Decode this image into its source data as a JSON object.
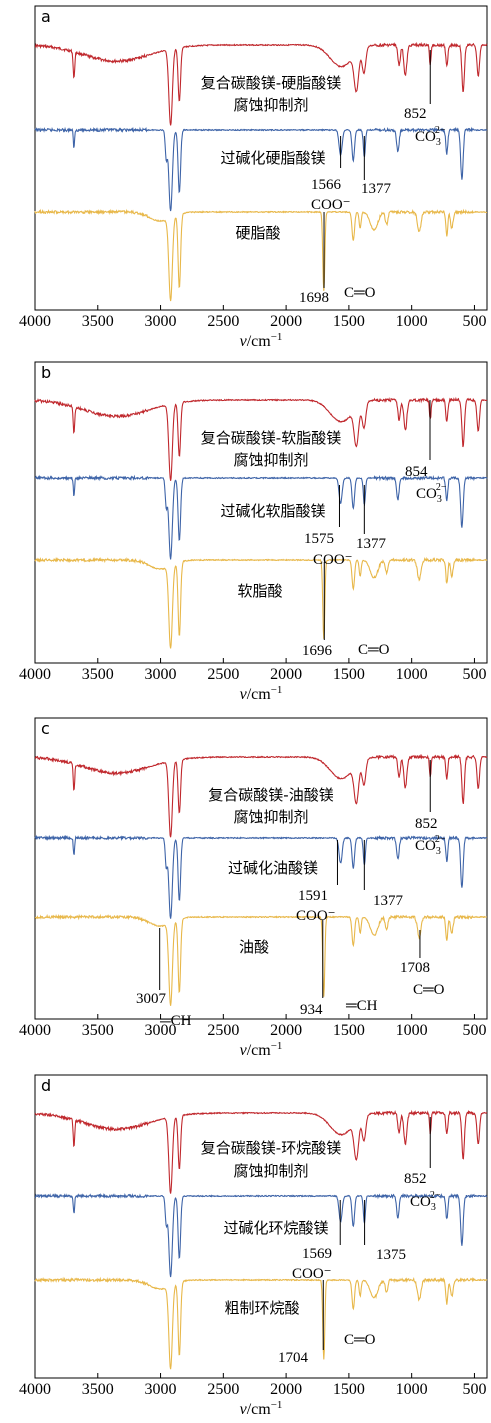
{
  "chart_data": [
    {
      "type": "line",
      "panel": "a",
      "xlabel": "v/cm",
      "xlabel_sup": "−1",
      "xlim": [
        4000,
        400
      ],
      "x_reversed": true,
      "ticks": [
        "4000",
        "3500",
        "3000",
        "2500",
        "2000",
        "1500",
        "1000",
        "500"
      ],
      "series": [
        {
          "name": "复合碳酸镁-硬脂酸镁腐蚀抑制剂",
          "color": "#c0282d"
        },
        {
          "name": "过碱化硬脂酸镁",
          "color": "#3e64a8"
        },
        {
          "name": "硬脂酸",
          "color": "#e8b84a"
        }
      ],
      "annotations": [
        {
          "text": "852",
          "x": 852
        },
        {
          "text": "CO",
          "sup": "2−",
          "sub": "3"
        },
        {
          "text": "1566",
          "x": 1566
        },
        {
          "text": "COO⁻"
        },
        {
          "text": "1377",
          "x": 1377
        },
        {
          "text": "1698",
          "x": 1698
        },
        {
          "text": "C═O"
        }
      ]
    },
    {
      "type": "line",
      "panel": "b",
      "xlabel": "v/cm",
      "xlabel_sup": "−1",
      "xlim": [
        4000,
        400
      ],
      "x_reversed": true,
      "ticks": [
        "4000",
        "3500",
        "3000",
        "2500",
        "2000",
        "1500",
        "1000",
        "500"
      ],
      "series": [
        {
          "name": "复合碳酸镁-软脂酸镁腐蚀抑制剂",
          "color": "#c0282d"
        },
        {
          "name": "过碱化软脂酸镁",
          "color": "#3e64a8"
        },
        {
          "name": "软脂酸",
          "color": "#e8b84a"
        }
      ],
      "annotations": [
        {
          "text": "854",
          "x": 854
        },
        {
          "text": "CO",
          "sup": "2−",
          "sub": "3"
        },
        {
          "text": "1575",
          "x": 1575
        },
        {
          "text": "COO⁻"
        },
        {
          "text": "1377",
          "x": 1377
        },
        {
          "text": "1696",
          "x": 1696
        },
        {
          "text": "C═O"
        }
      ]
    },
    {
      "type": "line",
      "panel": "c",
      "xlabel": "v/cm",
      "xlabel_sup": "−1",
      "xlim": [
        4000,
        400
      ],
      "x_reversed": true,
      "ticks": [
        "4000",
        "3500",
        "3000",
        "2500",
        "2000",
        "1500",
        "1000",
        "500"
      ],
      "series": [
        {
          "name": "复合碳酸镁-油酸镁腐蚀抑制剂",
          "color": "#c0282d"
        },
        {
          "name": "过碱化油酸镁",
          "color": "#3e64a8"
        },
        {
          "name": "油酸",
          "color": "#e8b84a"
        }
      ],
      "annotations": [
        {
          "text": "852",
          "x": 852
        },
        {
          "text": "CO",
          "sup": "2−",
          "sub": "3"
        },
        {
          "text": "1591",
          "x": 1591
        },
        {
          "text": "COO⁻"
        },
        {
          "text": "1377",
          "x": 1377
        },
        {
          "text": "3007",
          "x": 3007
        },
        {
          "text": "═CH"
        },
        {
          "text": "1708",
          "x": 1708
        },
        {
          "text": "C═O"
        },
        {
          "text": "934",
          "x": 934
        },
        {
          "text": "═CH"
        }
      ]
    },
    {
      "type": "line",
      "panel": "d",
      "xlabel": "v/cm",
      "xlabel_sup": "−1",
      "xlim": [
        4000,
        400
      ],
      "x_reversed": true,
      "ticks": [
        "4000",
        "3500",
        "3000",
        "2500",
        "2000",
        "1500",
        "1000",
        "500"
      ],
      "series": [
        {
          "name": "复合碳酸镁-环烷酸镁腐蚀抑制剂",
          "color": "#c0282d"
        },
        {
          "name": "过碱化环烷酸镁",
          "color": "#3e64a8"
        },
        {
          "name": "粗制环烷酸",
          "color": "#e8b84a"
        }
      ],
      "annotations": [
        {
          "text": "852",
          "x": 852
        },
        {
          "text": "CO",
          "sup": "2−",
          "sub": "3"
        },
        {
          "text": "1569",
          "x": 1569
        },
        {
          "text": "COO⁻"
        },
        {
          "text": "1375",
          "x": 1375
        },
        {
          "text": "1704",
          "x": 1704
        },
        {
          "text": "C═O"
        }
      ]
    }
  ]
}
